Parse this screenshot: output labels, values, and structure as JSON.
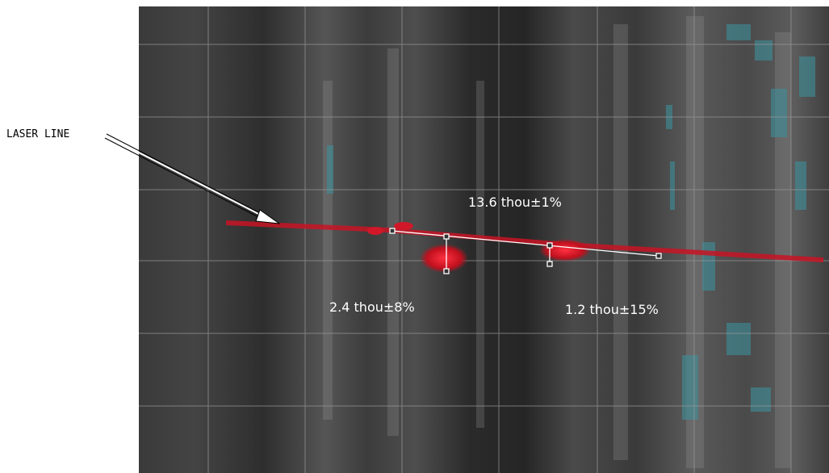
{
  "callout": {
    "label": "LASER LINE"
  },
  "measurements": [
    {
      "label": "13.6 thou±1%"
    },
    {
      "label": "2.4 thou±8%"
    },
    {
      "label": "1.2 thou±15%"
    }
  ]
}
